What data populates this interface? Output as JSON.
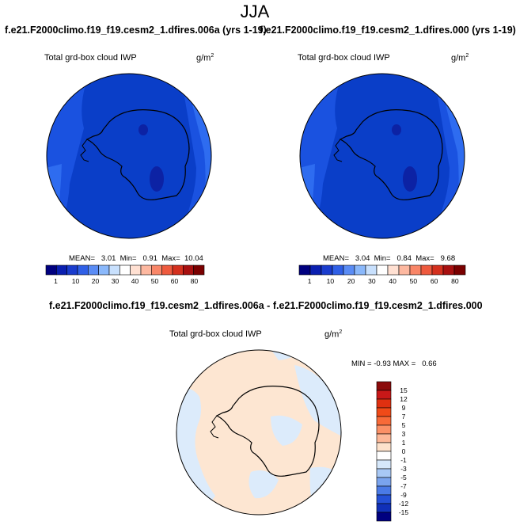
{
  "header": {
    "season": "JJA"
  },
  "panels": [
    {
      "title": "f.e21.F2000climo.f19_f19.cesm2_1.dfires.006a (yrs 1-19)",
      "variable": "Total grd-box cloud IWP",
      "units": "g/m",
      "units_exp": "2",
      "stats": "MEAN=   3.01  Min=   0.91  Max=  10.04"
    },
    {
      "title": "f.e21.F2000climo.f19_f19.cesm2_1.dfires.000 (yrs 1-19)",
      "variable": "Total grd-box cloud IWP",
      "units": "g/m",
      "units_exp": "2",
      "stats": "MEAN=   3.04  Min=   0.84  Max=   9.68"
    }
  ],
  "difference": {
    "title": "f.e21.F2000climo.f19_f19.cesm2_1.dfires.006a - f.e21.F2000climo.f19_f19.cesm2_1.dfires.000",
    "variable": "Total grd-box cloud IWP",
    "units": "g/m",
    "units_exp": "2",
    "stats": "MIN = -0.93 MAX =   0.66"
  },
  "colors": {
    "field_low": "#0a3ec8",
    "field_mid": "#1a52e0",
    "field_high": "#2e6cf0",
    "field_min": "#0c22a4",
    "diff_pos": "#fde6d2",
    "diff_neg": "#dcebfb"
  },
  "chart_data": [
    {
      "type": "heatmap",
      "projection": "south polar stereographic",
      "colorbar": {
        "ticks": [
          "1",
          "10",
          "20",
          "30",
          "40",
          "50",
          "60",
          "80"
        ],
        "colors": [
          "#00007f",
          "#0a1fb0",
          "#1a3ccd",
          "#2f5fe6",
          "#5a8cf5",
          "#8ab8fb",
          "#c8e0fd",
          "#ffffff",
          "#ffe0d2",
          "#fdb8a0",
          "#f98668",
          "#ee5a3e",
          "#d4301e",
          "#a81010",
          "#7a0000"
        ]
      },
      "mean": 3.01,
      "min": 0.91,
      "max": 10.04
    },
    {
      "type": "heatmap",
      "projection": "south polar stereographic",
      "colorbar": {
        "ticks": [
          "1",
          "10",
          "20",
          "30",
          "40",
          "50",
          "60",
          "80"
        ],
        "colors": [
          "#00007f",
          "#0a1fb0",
          "#1a3ccd",
          "#2f5fe6",
          "#5a8cf5",
          "#8ab8fb",
          "#c8e0fd",
          "#ffffff",
          "#ffe0d2",
          "#fdb8a0",
          "#f98668",
          "#ee5a3e",
          "#d4301e",
          "#a81010",
          "#7a0000"
        ]
      },
      "mean": 3.04,
      "min": 0.84,
      "max": 9.68
    },
    {
      "type": "heatmap",
      "projection": "south polar stereographic",
      "colorbar": {
        "orientation": "vertical",
        "ticks": [
          "15",
          "12",
          "9",
          "7",
          "5",
          "3",
          "1",
          "0",
          "-1",
          "-3",
          "-5",
          "-7",
          "-9",
          "-12",
          "-15"
        ],
        "colors": [
          "#8b0a0a",
          "#c81818",
          "#e03010",
          "#f04a18",
          "#f86a38",
          "#fb9066",
          "#fdb898",
          "#fde2cc",
          "#ffffff",
          "#d6e8fb",
          "#a8c8f5",
          "#7aa4ee",
          "#4a7ae6",
          "#2450d6",
          "#1030b8",
          "#00007f"
        ]
      },
      "min": -0.93,
      "max": 0.66
    }
  ]
}
